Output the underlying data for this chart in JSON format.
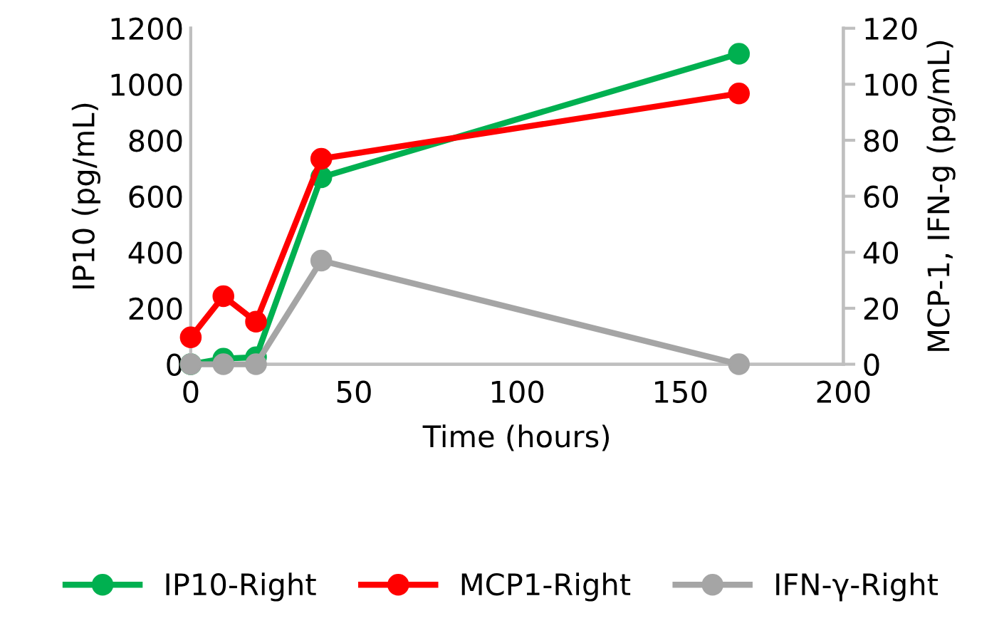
{
  "chart_data": {
    "type": "line",
    "xlabel": "Time (hours)",
    "ylabel": "IP10 (pg/mL)",
    "y2label": "MCP-1, IFN-g (pg/mL)",
    "x": [
      0,
      10,
      20,
      40,
      168
    ],
    "series": [
      {
        "name": "IP10-Right",
        "color": "#00b050",
        "values": [
          0,
          20,
          25,
          668,
          1109
        ]
      },
      {
        "name": "MCP1-Right",
        "color": "#ff0000",
        "values": [
          9.6,
          24.3,
          15.2,
          73.4,
          96.7
        ],
        "axis": "y2"
      },
      {
        "name": "IFN-γ-Right",
        "color": "#a5a5a5",
        "values": [
          0,
          0,
          0,
          37,
          0
        ],
        "axis": "y2"
      }
    ],
    "xlim": [
      0,
      200
    ],
    "xticks": [
      0,
      50,
      100,
      150,
      200
    ],
    "ylim": [
      0,
      1200
    ],
    "yticks": [
      0,
      200,
      400,
      600,
      800,
      1000,
      1200
    ],
    "y2lim": [
      0,
      120
    ],
    "y2ticks": [
      0,
      20,
      40,
      60,
      80,
      100,
      120
    ],
    "grid": false,
    "legend": "bottom",
    "marker": "circle",
    "line_style": "solid"
  }
}
